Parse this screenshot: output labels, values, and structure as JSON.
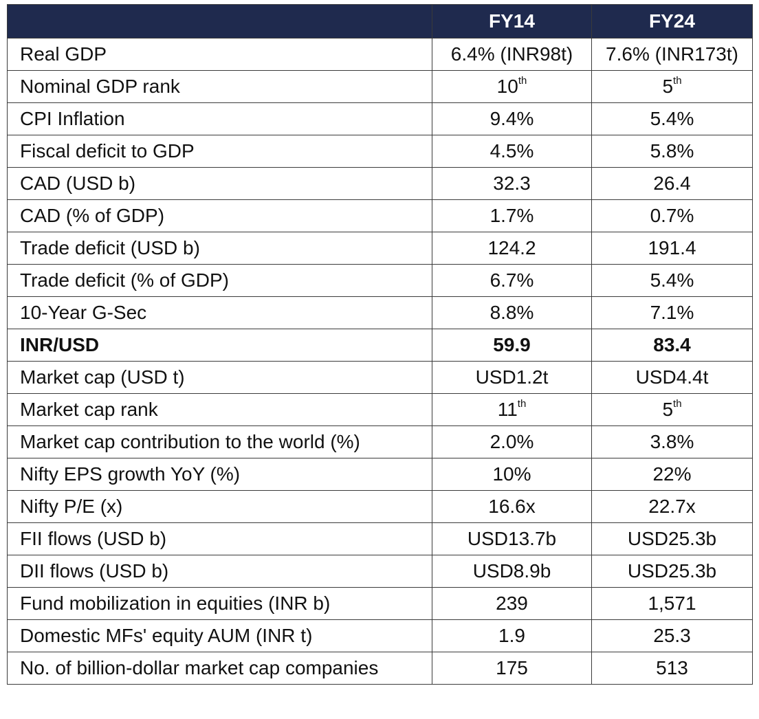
{
  "header": {
    "corner": "",
    "col_fy14": "FY14",
    "col_fy24": "FY24",
    "background_color": "#1f2a4e"
  },
  "rows": [
    {
      "label": "Real GDP",
      "fy14": "6.4% (INR98t)",
      "fy24": "7.6% (INR173t)"
    },
    {
      "label": "Nominal GDP rank",
      "fy14": "10",
      "fy14_sup": "th",
      "fy24": "5",
      "fy24_sup": "th"
    },
    {
      "label": "CPI Inflation",
      "fy14": "9.4%",
      "fy24": "5.4%"
    },
    {
      "label": "Fiscal deficit to GDP",
      "fy14": "4.5%",
      "fy24": "5.8%"
    },
    {
      "label": "CAD (USD b)",
      "fy14": "32.3",
      "fy24": "26.4"
    },
    {
      "label": "CAD (% of GDP)",
      "fy14": "1.7%",
      "fy24": "0.7%"
    },
    {
      "label": "Trade deficit (USD b)",
      "fy14": "124.2",
      "fy24": "191.4"
    },
    {
      "label": "Trade deficit (% of GDP)",
      "fy14": "6.7%",
      "fy24": "5.4%"
    },
    {
      "label": "10-Year G-Sec",
      "fy14": "8.8%",
      "fy24": "7.1%"
    },
    {
      "label": "INR/USD",
      "fy14": "59.9",
      "fy24": "83.4",
      "bold": true
    },
    {
      "label": "Market cap (USD t)",
      "fy14": "USD1.2t",
      "fy24": "USD4.4t"
    },
    {
      "label": "Market cap rank",
      "fy14": "11",
      "fy14_sup": "th",
      "fy24": "5",
      "fy24_sup": "th"
    },
    {
      "label": "Market cap contribution to the world (%)",
      "fy14": "2.0%",
      "fy24": "3.8%"
    },
    {
      "label": "Nifty EPS growth YoY (%)",
      "fy14": "10%",
      "fy24": "22%"
    },
    {
      "label": "Nifty P/E (x)",
      "fy14": "16.6x",
      "fy24": "22.7x"
    },
    {
      "label": "FII flows (USD b)",
      "fy14": "USD13.7b",
      "fy24": "USD25.3b"
    },
    {
      "label": "DII flows (USD b)",
      "fy14": "USD8.9b",
      "fy24": "USD25.3b"
    },
    {
      "label": "Fund mobilization in equities (INR b)",
      "fy14": "239",
      "fy24": "1,571"
    },
    {
      "label": "Domestic MFs' equity AUM (INR t)",
      "fy14": "1.9",
      "fy24": "25.3"
    },
    {
      "label": "No. of billion-dollar market cap companies",
      "fy14": "175",
      "fy24": "513"
    }
  ]
}
